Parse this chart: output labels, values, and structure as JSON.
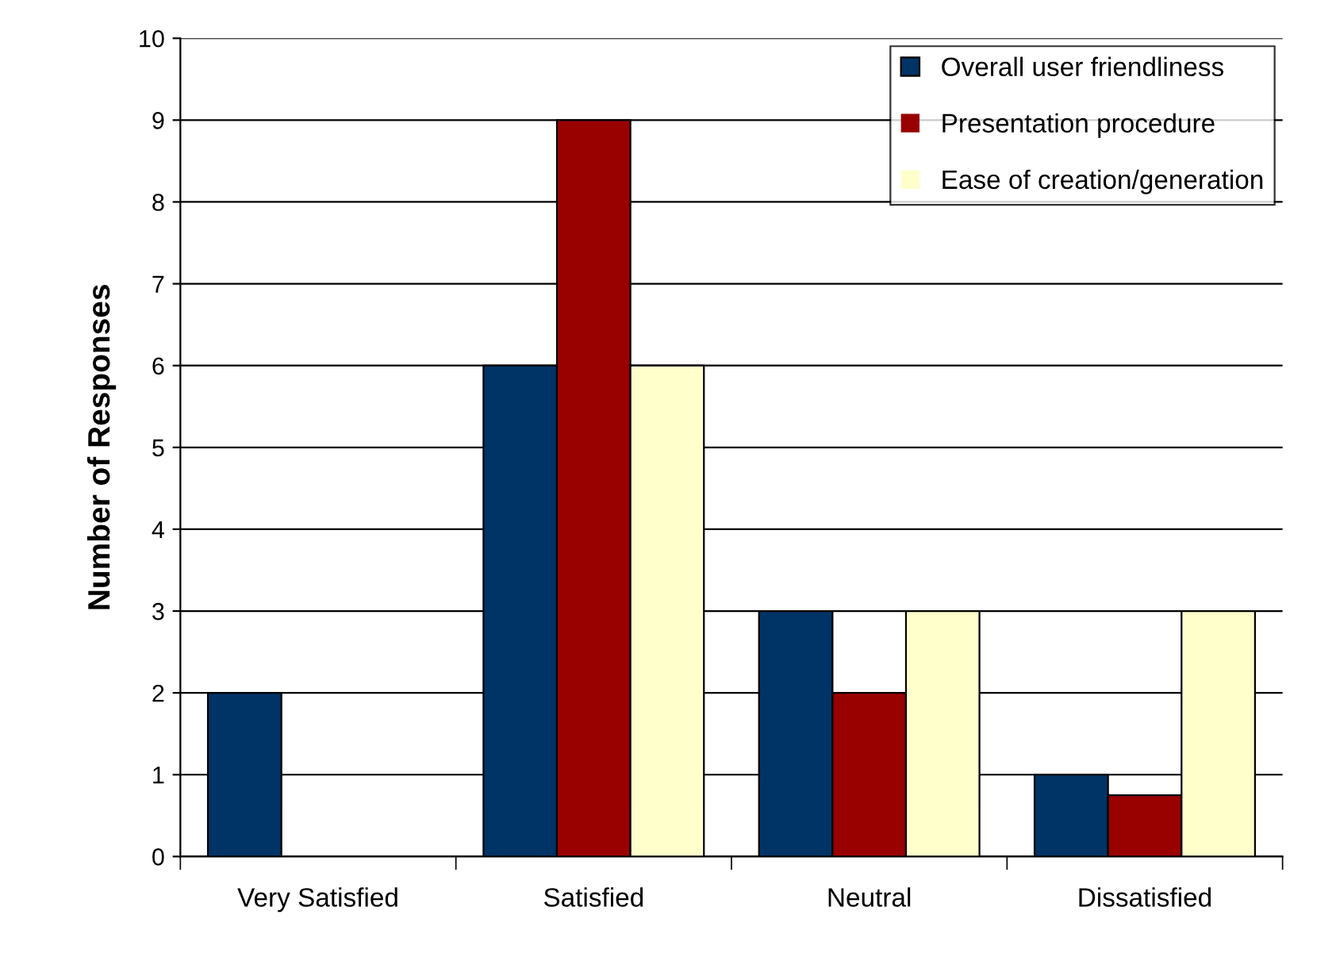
{
  "chart_data": {
    "type": "bar",
    "ylabel": "Number of Responses",
    "categories": [
      "Very Satisfied",
      "Satisfied",
      "Neutral",
      "Dissatisfied"
    ],
    "series": [
      {
        "name": "Overall user friendliness",
        "color": "#003366",
        "values": [
          2,
          6,
          3,
          1
        ]
      },
      {
        "name": "Presentation procedure",
        "color": "#990000",
        "values": [
          0,
          9,
          2,
          0.75
        ]
      },
      {
        "name": "Ease of creation/generation",
        "color": "#ffffcc",
        "values": [
          0,
          6,
          3,
          3
        ]
      }
    ],
    "ylim": [
      0,
      10
    ],
    "yticks": [
      0,
      1,
      2,
      3,
      4,
      5,
      6,
      7,
      8,
      9,
      10
    ],
    "grid": "y",
    "legend": "top right"
  }
}
